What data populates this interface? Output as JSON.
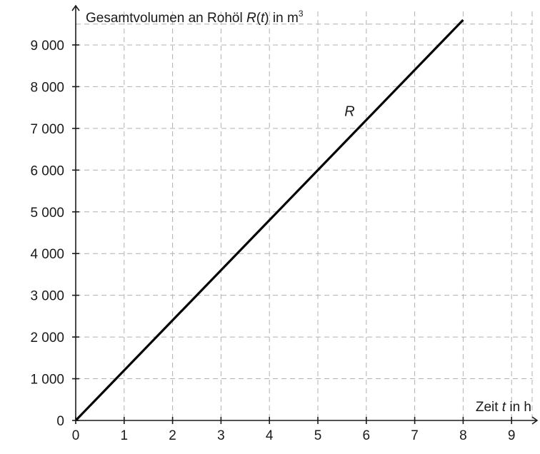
{
  "chart_data": {
    "type": "line",
    "xlabel": {
      "prefix": "Zeit ",
      "var": "t",
      "suffix": " in h"
    },
    "ylabel": {
      "prefix": "Gesamtvolumen an Rohöl ",
      "func": "R",
      "open": "(",
      "var": "t",
      "close": ")",
      "suffix": " in m",
      "sup": "3"
    },
    "x_ticks": [
      0,
      1,
      2,
      3,
      4,
      5,
      6,
      7,
      8,
      9
    ],
    "y_ticks": [
      0,
      1000,
      2000,
      3000,
      4000,
      5000,
      6000,
      7000,
      8000,
      9000
    ],
    "y_tick_labels": [
      "0",
      "1 000",
      "2 000",
      "3 000",
      "4 000",
      "5 000",
      "6 000",
      "7 000",
      "8 000",
      "9 000"
    ],
    "xlim": [
      0,
      9.5
    ],
    "ylim": [
      0,
      9600
    ],
    "grid": true,
    "series": [
      {
        "name": "R",
        "x": [
          0,
          8
        ],
        "y": [
          0,
          9600
        ]
      }
    ],
    "annotations": [
      {
        "text": "R",
        "x": 5.55,
        "y": 7300
      }
    ]
  }
}
